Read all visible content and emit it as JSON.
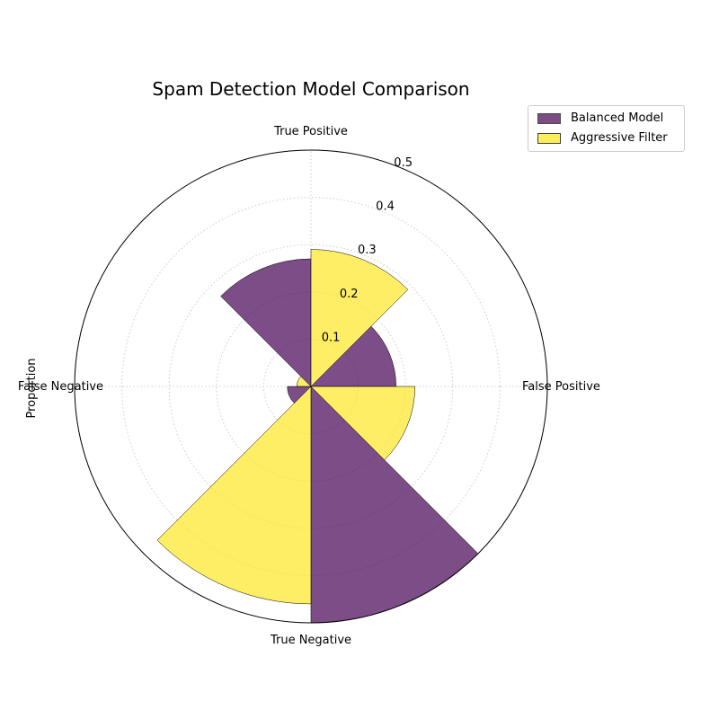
{
  "chart_data": {
    "type": "polar-bar",
    "title": "Spam Detection Model Comparison",
    "ylabel": "Proportion",
    "categories": [
      "True Positive",
      "False Positive",
      "True Negative",
      "False Negative"
    ],
    "radial_ticks": [
      "0.1",
      "0.2",
      "0.3",
      "0.4",
      "0.5"
    ],
    "rlim": [
      0,
      0.5
    ],
    "grid": true,
    "legend_position": "top-right",
    "series": [
      {
        "name": "Balanced Model",
        "color": "#440154",
        "values": [
          0.27,
          0.18,
          0.5,
          0.05
        ]
      },
      {
        "name": "Aggressive Filter",
        "color": "#fde725",
        "values": [
          0.29,
          0.22,
          0.46,
          0.03
        ]
      }
    ]
  }
}
